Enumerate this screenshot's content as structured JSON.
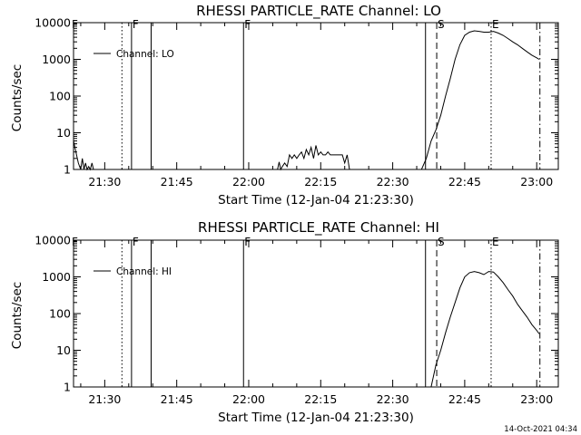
{
  "timestamp": "14-Oct-2021 04:34",
  "chart_data": [
    {
      "type": "line",
      "title": "RHESSI PARTICLE_RATE Channel: LO",
      "xlabel": "Start Time (12-Jan-04 21:23:30)",
      "ylabel": "Counts/sec",
      "yscale": "log",
      "ylim": [
        1,
        10000
      ],
      "xlim": [
        "21:23:30",
        "23:04:30"
      ],
      "x_ticks": [
        "21:30",
        "21:45",
        "22:00",
        "22:15",
        "22:30",
        "22:45",
        "23:00"
      ],
      "y_ticks": [
        "1",
        "10",
        "100",
        "1000",
        "10000"
      ],
      "legend": {
        "label": "Channel: LO",
        "position": "top-left"
      },
      "grid": false,
      "markers": [
        {
          "label": "F",
          "time": "21:35:35",
          "style": "solid"
        },
        {
          "label": "F",
          "time": "21:58:55",
          "style": "solid"
        },
        {
          "label": "S",
          "time": "22:39:10",
          "style": "dashed"
        },
        {
          "label": "E",
          "time": "22:50:30",
          "style": "dotted"
        }
      ],
      "extra_lines": [
        {
          "time": "21:33:35",
          "style": "dotted"
        },
        {
          "time": "21:39:40",
          "style": "solid"
        },
        {
          "time": "22:36:50",
          "style": "solid"
        },
        {
          "time": "23:00:40",
          "style": "dashdot"
        }
      ],
      "series": [
        {
          "name": "Channel: LO",
          "x": [
            "21:23:30",
            "21:24:00",
            "21:24:30",
            "21:25:00",
            "21:25:20",
            "21:25:40",
            "21:26:00",
            "21:26:20",
            "21:26:40",
            "21:27:00",
            "21:27:20",
            "21:27:40",
            "21:28:00",
            "22:06:00",
            "22:06:20",
            "22:06:40",
            "22:07:00",
            "22:07:30",
            "22:08:00",
            "22:08:30",
            "22:09:00",
            "22:09:30",
            "22:10:00",
            "22:10:30",
            "22:11:00",
            "22:11:30",
            "22:12:00",
            "22:12:30",
            "22:13:00",
            "22:13:30",
            "22:14:00",
            "22:14:30",
            "22:15:00",
            "22:15:30",
            "22:16:00",
            "22:16:30",
            "22:17:00",
            "22:17:30",
            "22:18:00",
            "22:18:30",
            "22:19:00",
            "22:19:30",
            "22:20:00",
            "22:20:30",
            "22:21:00",
            "22:21:30",
            "22:36:00",
            "22:37:00",
            "22:38:00",
            "22:39:00",
            "22:40:00",
            "22:41:00",
            "22:42:00",
            "22:43:00",
            "22:44:00",
            "22:45:00",
            "22:46:00",
            "22:47:00",
            "22:48:00",
            "22:49:00",
            "22:50:00",
            "22:51:00",
            "22:52:00",
            "22:53:00",
            "22:54:00",
            "22:55:00",
            "22:56:00",
            "22:57:00",
            "22:58:00",
            "22:59:00",
            "23:00:00",
            "23:00:30"
          ],
          "y": [
            6,
            3,
            1.5,
            1,
            2,
            1,
            1.5,
            1,
            1.2,
            1,
            1.5,
            1,
            1,
            1,
            1.6,
            1,
            1.2,
            1.5,
            1.2,
            2.5,
            2,
            2.5,
            2,
            2.5,
            3,
            2,
            3.5,
            2.5,
            4,
            2,
            4.5,
            2.5,
            3,
            2.5,
            2.5,
            3,
            2.5,
            2.5,
            2.5,
            2.5,
            2.5,
            2.5,
            1.5,
            2.5,
            1,
            1,
            1,
            2,
            6,
            12,
            30,
            100,
            300,
            1000,
            2500,
            4500,
            5500,
            6000,
            5800,
            5500,
            5500,
            5800,
            5200,
            4500,
            3700,
            3000,
            2500,
            2000,
            1600,
            1300,
            1100,
            1000
          ]
        }
      ]
    },
    {
      "type": "line",
      "title": "RHESSI PARTICLE_RATE Channel: HI",
      "xlabel": "Start Time (12-Jan-04 21:23:30)",
      "ylabel": "Counts/sec",
      "yscale": "log",
      "ylim": [
        1,
        10000
      ],
      "xlim": [
        "21:23:30",
        "23:04:30"
      ],
      "x_ticks": [
        "21:30",
        "21:45",
        "22:00",
        "22:15",
        "22:30",
        "22:45",
        "23:00"
      ],
      "y_ticks": [
        "1",
        "10",
        "100",
        "1000",
        "10000"
      ],
      "legend": {
        "label": "Channel: HI",
        "position": "top-left"
      },
      "grid": false,
      "markers": [
        {
          "label": "F",
          "time": "21:35:35",
          "style": "solid"
        },
        {
          "label": "F",
          "time": "21:58:55",
          "style": "solid"
        },
        {
          "label": "S",
          "time": "22:39:10",
          "style": "dashed"
        },
        {
          "label": "E",
          "time": "22:50:30",
          "style": "dotted"
        }
      ],
      "extra_lines": [
        {
          "time": "21:33:35",
          "style": "dotted"
        },
        {
          "time": "21:39:40",
          "style": "solid"
        },
        {
          "time": "22:36:50",
          "style": "solid"
        },
        {
          "time": "23:00:40",
          "style": "dashdot"
        }
      ],
      "series": [
        {
          "name": "Channel: HI",
          "x": [
            "22:38:00",
            "22:39:00",
            "22:40:00",
            "22:41:00",
            "22:42:00",
            "22:43:00",
            "22:44:00",
            "22:45:00",
            "22:46:00",
            "22:47:00",
            "22:48:00",
            "22:49:00",
            "22:50:00",
            "22:51:00",
            "22:52:00",
            "22:53:00",
            "22:54:00",
            "22:55:00",
            "22:56:00",
            "22:57:00",
            "22:58:00",
            "22:59:00",
            "23:00:00",
            "23:00:30"
          ],
          "y": [
            1,
            4,
            10,
            30,
            80,
            200,
            500,
            1000,
            1300,
            1400,
            1300,
            1150,
            1400,
            1350,
            1000,
            700,
            450,
            300,
            180,
            120,
            80,
            50,
            35,
            28
          ]
        }
      ]
    }
  ]
}
